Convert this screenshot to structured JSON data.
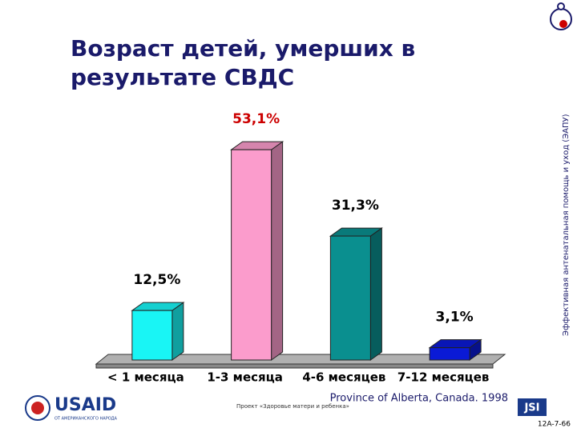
{
  "chart_data": {
    "type": "bar3d",
    "title": [
      "Возраст детей, умерших в",
      "результате СВДС"
    ],
    "categories": [
      "< 1 месяца",
      "1-3 месяца",
      "4-6 месяцев",
      "7-12 месяцев"
    ],
    "values": [
      12.5,
      53.1,
      31.3,
      3.1
    ],
    "value_labels": [
      "12,5%",
      "53,1%",
      "31,3%",
      "3,1%"
    ],
    "colors": [
      "#19f5f5",
      "#fb9ccc",
      "#0a8f8f",
      "#0a1ad6"
    ],
    "label_colors": [
      "#000000",
      "#cc0000",
      "#000000",
      "#000000"
    ],
    "source": "Province of Alberta, Canada. 1998"
  },
  "side_note": "Эффективная антенатальная помощь и уход (ЭАПУ)",
  "footer": {
    "logo": "USAID",
    "logo_sub": "ОТ АМЕРИКАНСКОГО НАРОДА",
    "project": "Проект «Здоровье матери и ребенка»",
    "partner": "JSI",
    "code": "12A-7-66"
  }
}
